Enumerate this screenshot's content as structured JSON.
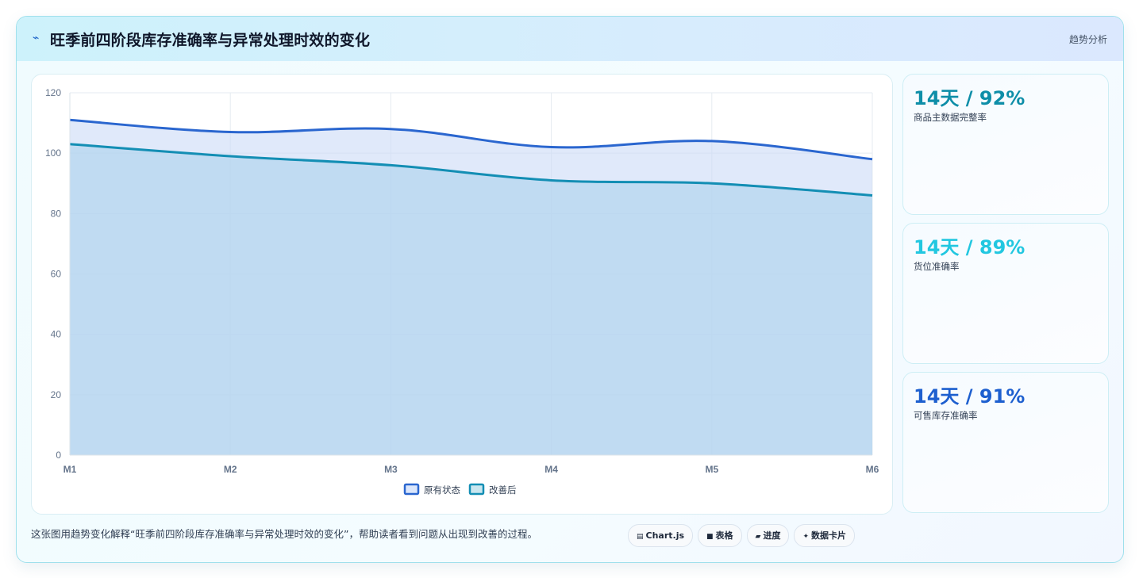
{
  "header": {
    "icon": "trend-line-icon",
    "title": "旺季前四阶段库存准确率与异常处理时效的变化",
    "tag": "趋势分析"
  },
  "chart_data": {
    "type": "area",
    "categories": [
      "M1",
      "M2",
      "M3",
      "M4",
      "M5",
      "M6"
    ],
    "series": [
      {
        "name": "原有状态",
        "values": [
          111,
          107,
          108,
          102,
          104,
          98
        ],
        "color": "#2a66cf"
      },
      {
        "name": "改善后",
        "values": [
          103,
          99,
          96,
          91,
          90,
          86
        ],
        "color": "#138eb4"
      }
    ],
    "ylim": [
      0,
      120
    ],
    "yticks": [
      0,
      20,
      40,
      60,
      80,
      100,
      120
    ],
    "grid": true,
    "legend": "bottom"
  },
  "stats": [
    {
      "value": "14天 / 92%",
      "label": "商品主数据完整率",
      "color": "#0e8ea8"
    },
    {
      "value": "14天 / 89%",
      "label": "货位准确率",
      "color": "#22c7e0"
    },
    {
      "value": "14天 / 91%",
      "label": "可售库存准确率",
      "color": "#1d5fcf"
    }
  ],
  "note": "这张图用趋势变化解释“旺季前四阶段库存准确率与异常处理时效的变化”，帮助读者看到问题从出现到改善的过程。",
  "chips": [
    {
      "icon": "chart-icon",
      "glyph": "▤",
      "label": "Chart.js"
    },
    {
      "icon": "table-icon",
      "glyph": "■",
      "label": "表格"
    },
    {
      "icon": "progress-icon",
      "glyph": "▰",
      "label": "进度"
    },
    {
      "icon": "sparkle-icon",
      "glyph": "✦",
      "label": "数据卡片"
    }
  ]
}
